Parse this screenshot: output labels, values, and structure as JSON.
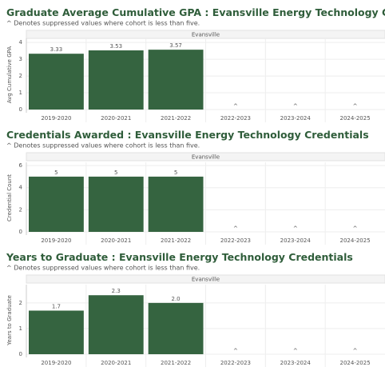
{
  "chart_data": [
    {
      "type": "bar",
      "title": "Graduate Average Cumulative GPA : Evansville Energy Technology Credentials",
      "subtitle": "^ Denotes suppressed values where cohort is less than five.",
      "panel_label": "Evansville",
      "y_label": "Avg Cumulative GPA",
      "categories": [
        "2019-2020",
        "2020-2021",
        "2021-2022",
        "2022-2023",
        "2023-2024",
        "2024-2025"
      ],
      "values": [
        3.33,
        3.53,
        3.57,
        null,
        null,
        null
      ],
      "value_labels": [
        "3.33",
        "3.53",
        "3.57",
        "^",
        "^",
        "^"
      ],
      "color": "#356440",
      "ylim": [
        0,
        4.15
      ],
      "yticks": [
        0,
        1,
        2,
        3,
        4
      ],
      "grid": true
    },
    {
      "type": "bar",
      "title": "Credentials Awarded : Evansville Energy Technology Credentials",
      "subtitle": "^ Denotes suppressed values where cohort is less than five.",
      "panel_label": "Evansville",
      "y_label": "Credential Count",
      "categories": [
        "2019-2020",
        "2020-2021",
        "2021-2022",
        "2022-2023",
        "2023-2024",
        "2024-2025"
      ],
      "values": [
        5,
        5,
        5,
        null,
        null,
        null
      ],
      "value_labels": [
        "5",
        "5",
        "5",
        "^",
        "^",
        "^"
      ],
      "color": "#356440",
      "ylim": [
        0,
        6.15
      ],
      "yticks": [
        0,
        2,
        4,
        6
      ],
      "grid": true
    },
    {
      "type": "bar",
      "title": "Years to Graduate : Evansville Energy Technology Credentials",
      "subtitle": "^ Denotes suppressed values where cohort is less than five.",
      "panel_label": "Evansville",
      "y_label": "Years to Graduate",
      "categories": [
        "2019-2020",
        "2020-2021",
        "2021-2022",
        "2022-2023",
        "2023-2024",
        "2024-2025"
      ],
      "values": [
        1.7,
        2.3,
        2.0,
        null,
        null,
        null
      ],
      "value_labels": [
        "1.7",
        "2.3",
        "2.0",
        "^",
        "^",
        "^"
      ],
      "color": "#356440",
      "ylim": [
        0,
        2.65
      ],
      "yticks": [
        0,
        1,
        2
      ],
      "grid": true
    }
  ]
}
